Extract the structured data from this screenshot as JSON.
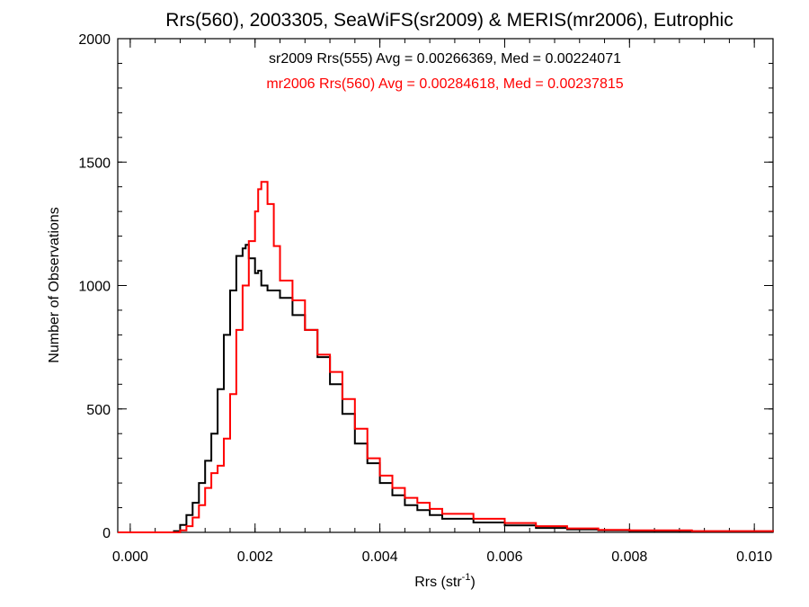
{
  "chart_data": {
    "type": "histogram",
    "title": "Rrs(560), 2003305, SeaWiFS(sr2009) & MERIS(mr2006), Eutrophic",
    "xlabel": "Rrs (str",
    "xlabel_sup": "-1",
    "xlabel_close": ")",
    "ylabel": "Number of Observations",
    "xlim": [
      -0.0002,
      0.0103
    ],
    "ylim": [
      0,
      2000
    ],
    "xticks": [
      "0.000",
      "0.002",
      "0.004",
      "0.006",
      "0.008",
      "0.010"
    ],
    "xtick_values": [
      0.0,
      0.002,
      0.004,
      0.006,
      0.008,
      0.01
    ],
    "yticks": [
      "0",
      "500",
      "1000",
      "1500",
      "2000"
    ],
    "ytick_values": [
      0,
      500,
      1000,
      1500,
      2000
    ],
    "annotations": [
      {
        "text": "sr2009 Rrs(555) Avg = 0.00266369, Med = 0.00224071",
        "color": "#000000"
      },
      {
        "text": "mr2006 Rrs(560) Avg = 0.00284618, Med = 0.00237815",
        "color": "#ff0000"
      }
    ],
    "series": [
      {
        "color": "#000000",
        "points": [
          [
            -0.0002,
            0
          ],
          [
            0.0005,
            0
          ],
          [
            0.0007,
            5
          ],
          [
            0.0008,
            30
          ],
          [
            0.0009,
            70
          ],
          [
            0.001,
            120
          ],
          [
            0.0011,
            200
          ],
          [
            0.0012,
            290
          ],
          [
            0.0013,
            400
          ],
          [
            0.0014,
            580
          ],
          [
            0.0015,
            800
          ],
          [
            0.0016,
            980
          ],
          [
            0.0017,
            1120
          ],
          [
            0.0018,
            1150
          ],
          [
            0.00185,
            1165
          ],
          [
            0.0019,
            1110
          ],
          [
            0.002,
            1050
          ],
          [
            0.00205,
            1060
          ],
          [
            0.0021,
            1000
          ],
          [
            0.0022,
            980
          ],
          [
            0.0024,
            950
          ],
          [
            0.0026,
            880
          ],
          [
            0.0028,
            820
          ],
          [
            0.003,
            710
          ],
          [
            0.0032,
            600
          ],
          [
            0.0034,
            480
          ],
          [
            0.0036,
            360
          ],
          [
            0.0038,
            280
          ],
          [
            0.004,
            200
          ],
          [
            0.0042,
            150
          ],
          [
            0.0044,
            110
          ],
          [
            0.0046,
            90
          ],
          [
            0.0048,
            70
          ],
          [
            0.005,
            55
          ],
          [
            0.0055,
            40
          ],
          [
            0.006,
            28
          ],
          [
            0.0065,
            18
          ],
          [
            0.007,
            12
          ],
          [
            0.0075,
            8
          ],
          [
            0.008,
            6
          ],
          [
            0.009,
            4
          ],
          [
            0.0103,
            3
          ]
        ]
      },
      {
        "color": "#ff0000",
        "points": [
          [
            -0.0002,
            0
          ],
          [
            0.0007,
            0
          ],
          [
            0.0008,
            8
          ],
          [
            0.0009,
            25
          ],
          [
            0.001,
            60
          ],
          [
            0.0011,
            110
          ],
          [
            0.0012,
            180
          ],
          [
            0.0013,
            240
          ],
          [
            0.0014,
            270
          ],
          [
            0.0015,
            380
          ],
          [
            0.0016,
            560
          ],
          [
            0.0017,
            820
          ],
          [
            0.0018,
            1000
          ],
          [
            0.0019,
            1180
          ],
          [
            0.002,
            1300
          ],
          [
            0.00205,
            1390
          ],
          [
            0.0021,
            1420
          ],
          [
            0.0022,
            1330
          ],
          [
            0.0023,
            1160
          ],
          [
            0.0024,
            1020
          ],
          [
            0.0026,
            940
          ],
          [
            0.0028,
            820
          ],
          [
            0.003,
            720
          ],
          [
            0.0032,
            650
          ],
          [
            0.0034,
            540
          ],
          [
            0.0036,
            420
          ],
          [
            0.0038,
            300
          ],
          [
            0.004,
            230
          ],
          [
            0.0042,
            180
          ],
          [
            0.0044,
            140
          ],
          [
            0.0046,
            120
          ],
          [
            0.0048,
            95
          ],
          [
            0.005,
            75
          ],
          [
            0.0055,
            55
          ],
          [
            0.006,
            38
          ],
          [
            0.0065,
            25
          ],
          [
            0.007,
            16
          ],
          [
            0.0075,
            10
          ],
          [
            0.008,
            8
          ],
          [
            0.009,
            5
          ],
          [
            0.0103,
            3
          ]
        ]
      }
    ]
  }
}
